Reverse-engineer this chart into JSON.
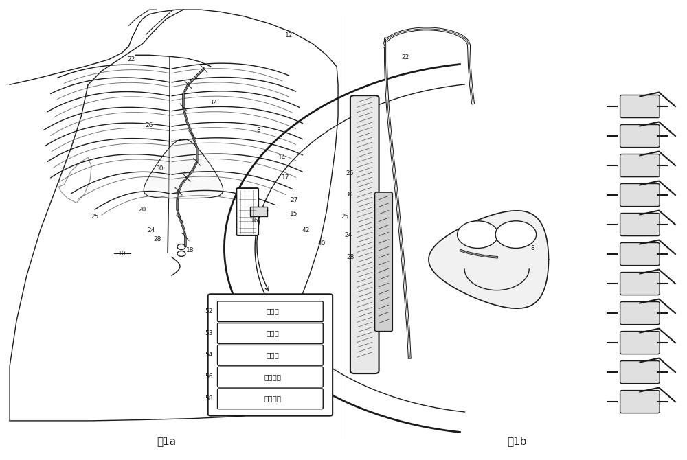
{
  "bg_color": "#ffffff",
  "line_color": "#1a1a1a",
  "fig_width": 10.0,
  "fig_height": 6.7,
  "fig1a_label": "图1a",
  "fig1b_label": "图1b",
  "box_labels": [
    "处理器",
    "存储器",
    "显示器",
    "用户接口",
    "遥测单元"
  ],
  "box_numbers": [
    "52",
    "53",
    "54",
    "56",
    "58"
  ]
}
